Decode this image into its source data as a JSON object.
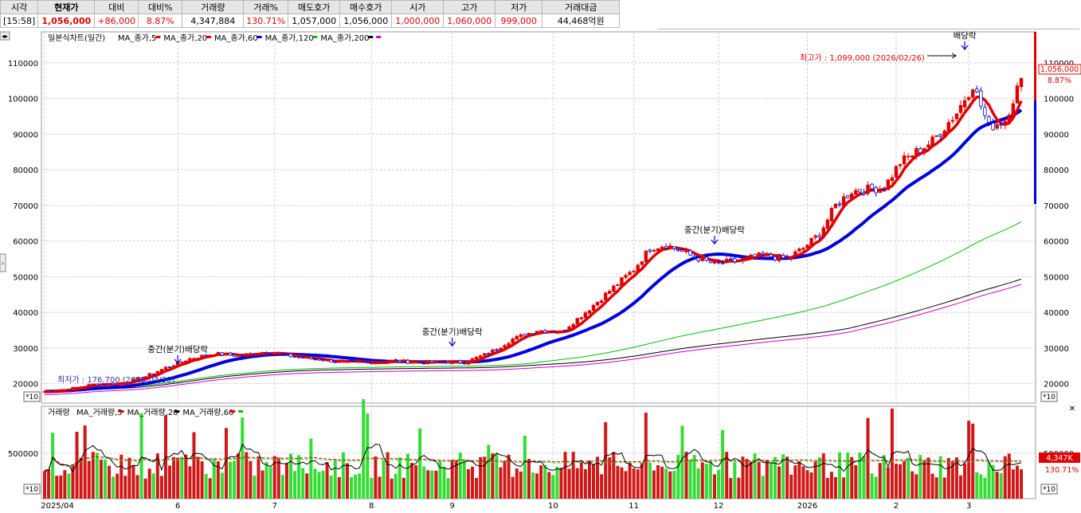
{
  "quote": {
    "headers": [
      "시각",
      "현재가",
      "대비",
      "대비%",
      "거래량",
      "거래%",
      "매도호가",
      "매수호가",
      "시가",
      "고가",
      "저가",
      "거래대금"
    ],
    "values": [
      "[15:58]",
      "1,056,000",
      "+86,000",
      "8.87%",
      "4,347,884",
      "130.71%",
      "1,057,000",
      "1,056,000",
      "1,000,000",
      "1,060,000",
      "999,000",
      "44,468억원"
    ],
    "value_colors": [
      "#000000",
      "#e00000",
      "#e00000",
      "#e00000",
      "#000000",
      "#e00000",
      "#000000",
      "#000000",
      "#e00000",
      "#e00000",
      "#e00000",
      "#000000"
    ]
  },
  "price_panel": {
    "legend": {
      "title": "일본식차트(일간)",
      "items": [
        {
          "label": "MA_종가,5",
          "color": "#e00000"
        },
        {
          "label": "MA_종가,20",
          "color": "#e00000"
        },
        {
          "label": "MA_종가,60",
          "color": "#0000e0"
        },
        {
          "label": "MA_종가,120",
          "color": "#00c000"
        },
        {
          "label": "MA_종가,200",
          "color": "#000000"
        },
        {
          "label": "",
          "color": "#d000d0"
        }
      ]
    },
    "high_annotation": "최고가 : 1,099,000 (2026/02/26)",
    "low_annotation": "최저가 : 176,700 (2025/04/30)",
    "dividend_label": "배당락",
    "interim_dividend_label": "중간(분기)배당락",
    "current_price_tag": "1,056,000",
    "current_change_tag": "8.87%",
    "scale_box": "*10"
  },
  "volume_panel": {
    "legend": {
      "title": "거래량",
      "items": [
        {
          "label": "MA_거래량,5",
          "color": "#e00000"
        },
        {
          "label": "MA_거래량,20",
          "color": "#000000"
        },
        {
          "label": "MA_거래량,60",
          "color": "#e00000"
        },
        {
          "label": "",
          "color": "#00c000"
        }
      ]
    },
    "current_volume_tag": "4,347K",
    "current_ratio_tag": "130.71%",
    "scale_box": "*10"
  },
  "colors": {
    "up": "#e00000",
    "down": "#0000d0",
    "ma5": "#e00000",
    "ma20": "#e00000",
    "ma60": "#0000e0",
    "ma120": "#00c000",
    "ma200": "#000000",
    "ma_extra": "#d000d0",
    "vol_up": "#d01818",
    "vol_down": "#33dd33",
    "grid": "#cfcfcf"
  },
  "chart_data": [
    {
      "type": "line",
      "title": "일본식차트(일간)",
      "ylim": [
        15000,
        118000
      ],
      "yticks": [
        20000,
        30000,
        40000,
        50000,
        60000,
        70000,
        80000,
        90000,
        100000,
        110000
      ],
      "x_labels": [
        "2025/04",
        "6",
        "7",
        "8",
        "9",
        "10",
        "11",
        "12",
        "2026",
        "2",
        "3"
      ],
      "x_label_day": [
        0,
        33,
        57,
        81,
        101,
        126,
        146,
        167,
        189,
        211,
        229
      ],
      "n_days": 243,
      "close_anchors": {
        "day": [
          0,
          6,
          12,
          18,
          24,
          30,
          36,
          42,
          48,
          55,
          62,
          68,
          74,
          80,
          86,
          92,
          98,
          104,
          110,
          116,
          122,
          128,
          134,
          140,
          146,
          150,
          154,
          160,
          166,
          172,
          178,
          184,
          188,
          192,
          196,
          200,
          204,
          208,
          212,
          216,
          220,
          226,
          230,
          234,
          238,
          242
        ],
        "close": [
          17800,
          18500,
          19800,
          20000,
          21500,
          24500,
          27000,
          28500,
          27800,
          29000,
          27500,
          26800,
          26000,
          25900,
          26400,
          26000,
          26100,
          26000,
          28500,
          32500,
          35000,
          34500,
          40000,
          46000,
          52000,
          58000,
          59000,
          56000,
          53500,
          54500,
          56000,
          55000,
          58000,
          62000,
          70000,
          74000,
          74500,
          75000,
          82000,
          85000,
          88000,
          96000,
          104000,
          92000,
          94000,
          105600
        ]
      },
      "series": [
        {
          "name": "MA_종가,5"
        },
        {
          "name": "MA_종가,20"
        },
        {
          "name": "MA_종가,60"
        },
        {
          "name": "MA_종가,120"
        },
        {
          "name": "MA_종가,200"
        }
      ]
    },
    {
      "type": "bar",
      "title": "거래량",
      "ylim": [
        0,
        1000000
      ],
      "yticks": [
        500000
      ],
      "series": [
        {
          "name": "MA_거래량,5"
        },
        {
          "name": "MA_거래량,20"
        },
        {
          "name": "MA_거래량,60"
        }
      ]
    }
  ]
}
